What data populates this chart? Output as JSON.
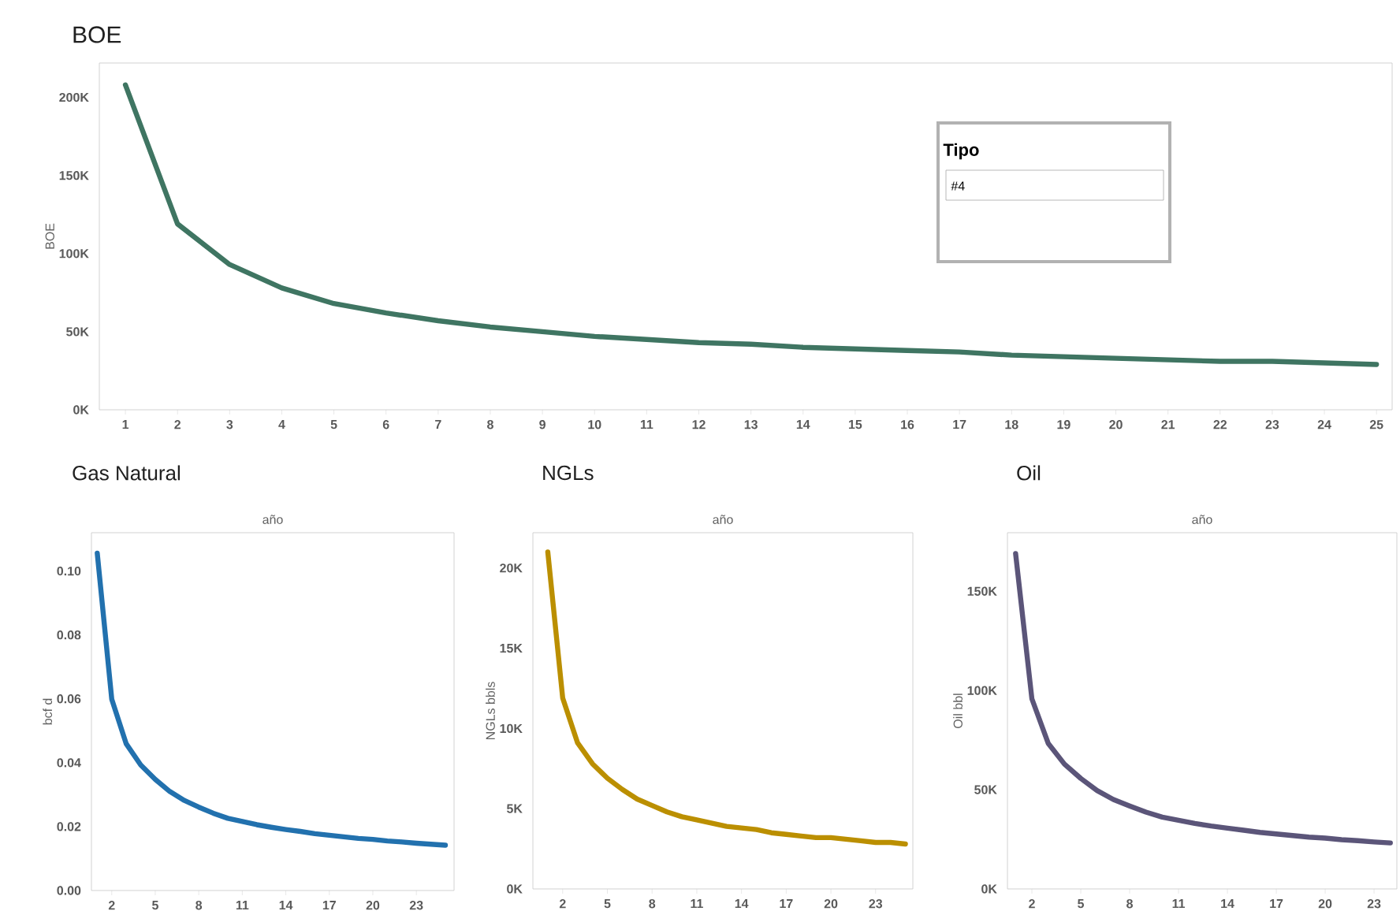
{
  "chart_data": [
    {
      "type": "line",
      "title": "BOE",
      "ylabel": "BOE",
      "categories": [
        "1",
        "2",
        "3",
        "4",
        "5",
        "6",
        "7",
        "8",
        "9",
        "10",
        "11",
        "12",
        "13",
        "14",
        "15",
        "16",
        "17",
        "18",
        "19",
        "20",
        "21",
        "22",
        "23",
        "24",
        "25"
      ],
      "values": [
        208000,
        119000,
        93000,
        78000,
        68000,
        62000,
        57000,
        53000,
        50000,
        47000,
        45000,
        43000,
        42000,
        40000,
        39000,
        38000,
        37000,
        35000,
        34000,
        33000,
        32000,
        31000,
        31000,
        30000,
        29000
      ],
      "color": "#3f7562",
      "ylim": [
        0,
        222000
      ],
      "yticks": [
        {
          "value": 0,
          "label": "0K"
        },
        {
          "value": 50000,
          "label": "50K"
        },
        {
          "value": 100000,
          "label": "100K"
        },
        {
          "value": 150000,
          "label": "150K"
        },
        {
          "value": 200000,
          "label": "200K"
        }
      ]
    },
    {
      "type": "line",
      "title": "Gas Natural",
      "xlabel": "año",
      "ylabel": "bcf d",
      "x": [
        1,
        2,
        3,
        4,
        5,
        6,
        7,
        8,
        9,
        10,
        11,
        12,
        13,
        14,
        15,
        16,
        17,
        18,
        19,
        20,
        21,
        22,
        23,
        24,
        25
      ],
      "values": [
        0.1056,
        0.0599,
        0.0459,
        0.0393,
        0.0348,
        0.031,
        0.0282,
        0.0261,
        0.0242,
        0.0226,
        0.0216,
        0.0206,
        0.0198,
        0.0191,
        0.0185,
        0.0178,
        0.0173,
        0.0168,
        0.0163,
        0.016,
        0.0155,
        0.0152,
        0.0148,
        0.0145,
        0.0142
      ],
      "color": "#2271ae",
      "xlim": [
        0.6,
        25.6
      ],
      "ylim": [
        0,
        0.112
      ],
      "xticks": [
        2,
        5,
        8,
        11,
        14,
        17,
        20,
        23
      ],
      "yticks": [
        {
          "value": 0,
          "label": "0.00"
        },
        {
          "value": 0.02,
          "label": "0.02"
        },
        {
          "value": 0.04,
          "label": "0.04"
        },
        {
          "value": 0.06,
          "label": "0.06"
        },
        {
          "value": 0.08,
          "label": "0.08"
        },
        {
          "value": 0.1,
          "label": "0.10"
        }
      ]
    },
    {
      "type": "line",
      "title": "NGLs",
      "xlabel": "año",
      "ylabel": "NGLs bbls",
      "x": [
        1,
        2,
        3,
        4,
        5,
        6,
        7,
        8,
        9,
        10,
        11,
        12,
        13,
        14,
        15,
        16,
        17,
        18,
        19,
        20,
        21,
        22,
        23,
        24,
        25
      ],
      "values": [
        21000,
        11900,
        9100,
        7800,
        6900,
        6200,
        5600,
        5200,
        4800,
        4500,
        4300,
        4100,
        3900,
        3800,
        3700,
        3500,
        3400,
        3300,
        3200,
        3200,
        3100,
        3000,
        2900,
        2900,
        2800
      ],
      "color": "#bb8f00",
      "xlim": [
        0,
        25.5
      ],
      "ylim": [
        0,
        22200
      ],
      "xticks": [
        2,
        5,
        8,
        11,
        14,
        17,
        20,
        23
      ],
      "yticks": [
        {
          "value": 0,
          "label": "0K"
        },
        {
          "value": 5000,
          "label": "5K"
        },
        {
          "value": 10000,
          "label": "10K"
        },
        {
          "value": 15000,
          "label": "15K"
        },
        {
          "value": 20000,
          "label": "20K"
        }
      ]
    },
    {
      "type": "line",
      "title": "Oil",
      "xlabel": "año",
      "ylabel": "Oil bbl",
      "x": [
        1,
        2,
        3,
        4,
        5,
        6,
        7,
        8,
        9,
        10,
        11,
        12,
        13,
        14,
        15,
        16,
        17,
        18,
        19,
        20,
        21,
        22,
        23,
        24
      ],
      "values": [
        169000,
        95800,
        73400,
        62900,
        55700,
        49600,
        45100,
        41800,
        38700,
        36200,
        34600,
        33000,
        31700,
        30600,
        29600,
        28500,
        27700,
        26900,
        26100,
        25600,
        24800,
        24300,
        23700,
        23200
      ],
      "color": "#5b5579",
      "xlim": [
        0.5,
        24.4
      ],
      "ylim": [
        0,
        179500
      ],
      "xticks": [
        2,
        5,
        8,
        11,
        14,
        17,
        20,
        23
      ],
      "yticks": [
        {
          "value": 0,
          "label": "0K"
        },
        {
          "value": 50000,
          "label": "50K"
        },
        {
          "value": 100000,
          "label": "100K"
        },
        {
          "value": 150000,
          "label": "150K"
        }
      ]
    },
    {
      "type": "other",
      "title": "Tipo",
      "annotations": [
        "#4"
      ]
    }
  ]
}
